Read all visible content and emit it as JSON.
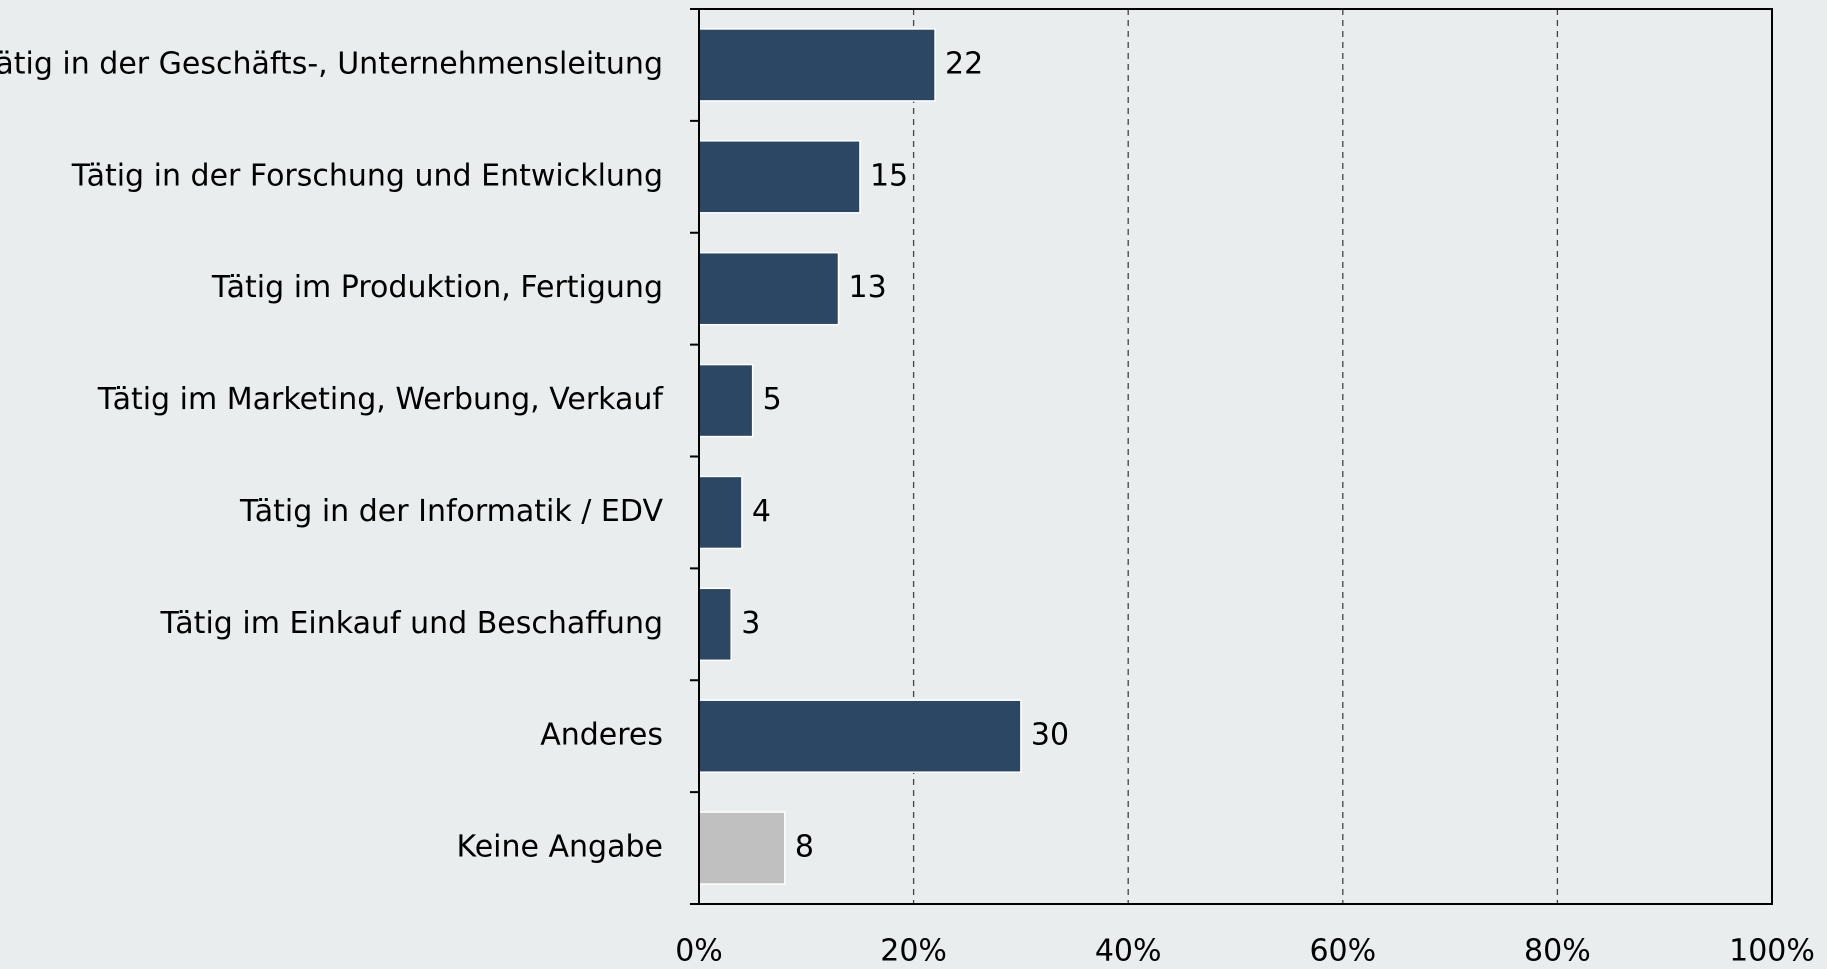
{
  "chart_data": {
    "type": "bar",
    "orientation": "horizontal",
    "categories": [
      "Tätig in der Geschäfts-, Unternehmensleitung",
      "Tätig in der Forschung und Entwicklung",
      "Tätig im Produktion, Fertigung",
      "Tätig im Marketing, Werbung, Verkauf",
      "Tätig in der Informatik / EDV",
      "Tätig im Einkauf und Beschaffung",
      "Anderes",
      "Keine Angabe"
    ],
    "values": [
      22,
      15,
      13,
      5,
      4,
      3,
      30,
      8
    ],
    "colors": [
      "#2b4764",
      "#2b4764",
      "#2b4764",
      "#2b4764",
      "#2b4764",
      "#2b4764",
      "#2b4764",
      "#c0c0c0"
    ],
    "xlim": [
      0,
      100
    ],
    "xticks": [
      {
        "value": 0,
        "label": "0%"
      },
      {
        "value": 20,
        "label": "20%"
      },
      {
        "value": 40,
        "label": "40%"
      },
      {
        "value": 60,
        "label": "60%"
      },
      {
        "value": 80,
        "label": "80%"
      },
      {
        "value": 100,
        "label": "100%"
      }
    ],
    "grid": true
  }
}
